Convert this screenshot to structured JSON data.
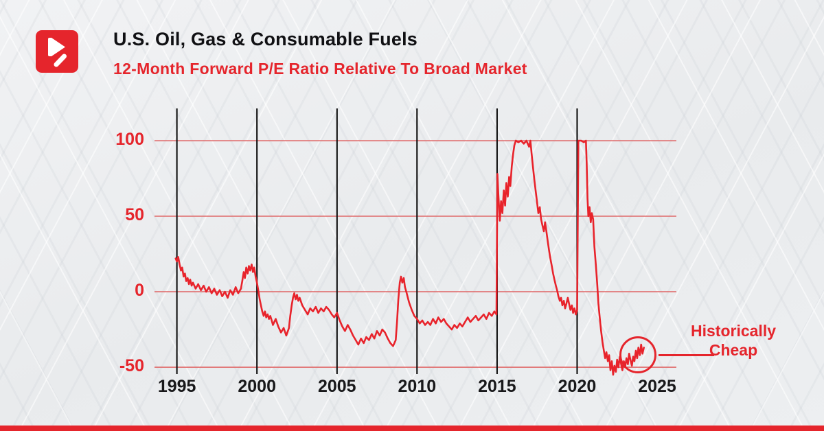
{
  "page": {
    "background_color": "#eceef0",
    "accent_color": "#e5252c",
    "text_color": "#141416"
  },
  "header": {
    "title": "U.S. Oil, Gas & Consumable Fuels",
    "subtitle": "12-Month Forward P/E Ratio Relative To Broad Market"
  },
  "annotation": {
    "line1": "Historically",
    "line2": "Cheap"
  },
  "chart_data": {
    "type": "line",
    "title": "U.S. Oil, Gas & Consumable Fuels",
    "subtitle": "12-Month Forward P/E Ratio Relative To Broad Market",
    "xlabel": "",
    "ylabel": "",
    "xlim": [
      1993.6,
      2026.2
    ],
    "ylim": [
      -54.5,
      122.7
    ],
    "x_ticks": [
      1995,
      2000,
      2005,
      2010,
      2015,
      2020,
      2025
    ],
    "x_tick_labels": [
      "1995",
      "2000",
      "2005",
      "2010",
      "2015",
      "2020",
      "2025"
    ],
    "y_ticks": [
      100,
      50,
      0,
      -50
    ],
    "y_tick_labels": [
      "100",
      "50",
      "0",
      "-50"
    ],
    "grid": {
      "vertical_years": [
        1995,
        2000,
        2005,
        2010,
        2015,
        2020
      ],
      "horizontal_values": [
        100,
        50,
        0,
        -50
      ]
    },
    "legend": "none",
    "colors": {
      "line": "#e8232b",
      "grid_horizontal": "#e06a6a",
      "grid_vertical": "#1a1a1a",
      "x_tick": "#18181a",
      "y_tick": "#e5252c"
    },
    "annotation": {
      "text": "Historically Cheap",
      "target_x": 2023.8,
      "target_y": -42,
      "radius_px": 27
    },
    "series": [
      {
        "points": [
          [
            1994.92,
            22
          ],
          [
            1995.0,
            20
          ],
          [
            1995.08,
            23
          ],
          [
            1995.17,
            18
          ],
          [
            1995.25,
            14
          ],
          [
            1995.33,
            16
          ],
          [
            1995.42,
            10
          ],
          [
            1995.5,
            12
          ],
          [
            1995.58,
            7
          ],
          [
            1995.67,
            9
          ],
          [
            1995.75,
            5
          ],
          [
            1995.83,
            8
          ],
          [
            1995.92,
            4
          ],
          [
            1996.0,
            6
          ],
          [
            1996.17,
            2
          ],
          [
            1996.33,
            5
          ],
          [
            1996.5,
            1
          ],
          [
            1996.67,
            4
          ],
          [
            1996.83,
            0
          ],
          [
            1997.0,
            3
          ],
          [
            1997.17,
            -1
          ],
          [
            1997.33,
            2
          ],
          [
            1997.5,
            -2
          ],
          [
            1997.67,
            1
          ],
          [
            1997.83,
            -3
          ],
          [
            1998.0,
            0
          ],
          [
            1998.17,
            -4
          ],
          [
            1998.33,
            1
          ],
          [
            1998.5,
            -2
          ],
          [
            1998.67,
            3
          ],
          [
            1998.83,
            -1
          ],
          [
            1999.0,
            2
          ],
          [
            1999.08,
            7
          ],
          [
            1999.17,
            13
          ],
          [
            1999.25,
            9
          ],
          [
            1999.33,
            16
          ],
          [
            1999.42,
            12
          ],
          [
            1999.5,
            17
          ],
          [
            1999.58,
            14
          ],
          [
            1999.67,
            18
          ],
          [
            1999.75,
            13
          ],
          [
            1999.83,
            16
          ],
          [
            1999.92,
            10
          ],
          [
            2000.0,
            6
          ],
          [
            2000.08,
            1
          ],
          [
            2000.17,
            -5
          ],
          [
            2000.25,
            -9
          ],
          [
            2000.33,
            -13
          ],
          [
            2000.42,
            -16
          ],
          [
            2000.5,
            -13
          ],
          [
            2000.58,
            -17
          ],
          [
            2000.67,
            -15
          ],
          [
            2000.75,
            -18
          ],
          [
            2000.83,
            -16
          ],
          [
            2000.92,
            -19
          ],
          [
            2001.0,
            -22
          ],
          [
            2001.17,
            -18
          ],
          [
            2001.33,
            -23
          ],
          [
            2001.5,
            -27
          ],
          [
            2001.67,
            -24
          ],
          [
            2001.83,
            -29
          ],
          [
            2002.0,
            -24
          ],
          [
            2002.08,
            -16
          ],
          [
            2002.17,
            -9
          ],
          [
            2002.25,
            -4
          ],
          [
            2002.33,
            -1
          ],
          [
            2002.42,
            -5
          ],
          [
            2002.5,
            -2
          ],
          [
            2002.58,
            -6
          ],
          [
            2002.67,
            -4
          ],
          [
            2002.83,
            -9
          ],
          [
            2003.0,
            -12
          ],
          [
            2003.17,
            -15
          ],
          [
            2003.33,
            -11
          ],
          [
            2003.5,
            -13
          ],
          [
            2003.67,
            -10
          ],
          [
            2003.83,
            -14
          ],
          [
            2004.0,
            -11
          ],
          [
            2004.17,
            -13
          ],
          [
            2004.33,
            -10
          ],
          [
            2004.5,
            -12
          ],
          [
            2004.67,
            -15
          ],
          [
            2004.83,
            -17
          ],
          [
            2005.0,
            -14
          ],
          [
            2005.17,
            -19
          ],
          [
            2005.33,
            -23
          ],
          [
            2005.5,
            -26
          ],
          [
            2005.67,
            -22
          ],
          [
            2005.83,
            -25
          ],
          [
            2006.0,
            -29
          ],
          [
            2006.17,
            -32
          ],
          [
            2006.33,
            -35
          ],
          [
            2006.5,
            -31
          ],
          [
            2006.67,
            -34
          ],
          [
            2006.83,
            -30
          ],
          [
            2007.0,
            -32
          ],
          [
            2007.17,
            -28
          ],
          [
            2007.33,
            -31
          ],
          [
            2007.5,
            -26
          ],
          [
            2007.67,
            -29
          ],
          [
            2007.83,
            -25
          ],
          [
            2008.0,
            -27
          ],
          [
            2008.17,
            -31
          ],
          [
            2008.33,
            -34
          ],
          [
            2008.5,
            -36
          ],
          [
            2008.67,
            -32
          ],
          [
            2008.75,
            -20
          ],
          [
            2008.83,
            -5
          ],
          [
            2008.92,
            6
          ],
          [
            2009.0,
            10
          ],
          [
            2009.08,
            6
          ],
          [
            2009.17,
            9
          ],
          [
            2009.25,
            3
          ],
          [
            2009.33,
            0
          ],
          [
            2009.5,
            -7
          ],
          [
            2009.67,
            -12
          ],
          [
            2009.83,
            -16
          ],
          [
            2010.0,
            -18
          ],
          [
            2010.17,
            -21
          ],
          [
            2010.33,
            -19
          ],
          [
            2010.5,
            -22
          ],
          [
            2010.67,
            -20
          ],
          [
            2010.83,
            -22
          ],
          [
            2011.0,
            -18
          ],
          [
            2011.17,
            -21
          ],
          [
            2011.33,
            -17
          ],
          [
            2011.5,
            -20
          ],
          [
            2011.67,
            -18
          ],
          [
            2011.83,
            -21
          ],
          [
            2012.0,
            -23
          ],
          [
            2012.17,
            -25
          ],
          [
            2012.33,
            -22
          ],
          [
            2012.5,
            -24
          ],
          [
            2012.67,
            -21
          ],
          [
            2012.83,
            -23
          ],
          [
            2013.0,
            -20
          ],
          [
            2013.17,
            -17
          ],
          [
            2013.33,
            -20
          ],
          [
            2013.5,
            -18
          ],
          [
            2013.67,
            -16
          ],
          [
            2013.83,
            -19
          ],
          [
            2014.0,
            -17
          ],
          [
            2014.17,
            -15
          ],
          [
            2014.33,
            -18
          ],
          [
            2014.5,
            -14
          ],
          [
            2014.67,
            -16
          ],
          [
            2014.83,
            -13
          ],
          [
            2014.96,
            -15
          ],
          [
            2015.02,
            78
          ],
          [
            2015.08,
            64
          ],
          [
            2015.17,
            47
          ],
          [
            2015.25,
            60
          ],
          [
            2015.33,
            52
          ],
          [
            2015.42,
            67
          ],
          [
            2015.5,
            57
          ],
          [
            2015.58,
            72
          ],
          [
            2015.67,
            63
          ],
          [
            2015.75,
            76
          ],
          [
            2015.83,
            70
          ],
          [
            2015.92,
            83
          ],
          [
            2016.0,
            91
          ],
          [
            2016.08,
            97
          ],
          [
            2016.17,
            100
          ],
          [
            2016.33,
            99
          ],
          [
            2016.5,
            100
          ],
          [
            2016.67,
            98
          ],
          [
            2016.83,
            100
          ],
          [
            2017.0,
            96
          ],
          [
            2017.08,
            100
          ],
          [
            2017.17,
            90
          ],
          [
            2017.25,
            82
          ],
          [
            2017.33,
            74
          ],
          [
            2017.42,
            66
          ],
          [
            2017.5,
            59
          ],
          [
            2017.58,
            52
          ],
          [
            2017.67,
            56
          ],
          [
            2017.75,
            48
          ],
          [
            2017.83,
            44
          ],
          [
            2017.92,
            40
          ],
          [
            2018.0,
            46
          ],
          [
            2018.08,
            40
          ],
          [
            2018.17,
            33
          ],
          [
            2018.25,
            27
          ],
          [
            2018.33,
            22
          ],
          [
            2018.42,
            17
          ],
          [
            2018.5,
            12
          ],
          [
            2018.58,
            8
          ],
          [
            2018.67,
            4
          ],
          [
            2018.75,
            1
          ],
          [
            2018.83,
            -3
          ],
          [
            2018.92,
            -6
          ],
          [
            2019.0,
            -4
          ],
          [
            2019.08,
            -9
          ],
          [
            2019.17,
            -6
          ],
          [
            2019.25,
            -11
          ],
          [
            2019.33,
            -8
          ],
          [
            2019.42,
            -4
          ],
          [
            2019.5,
            -8
          ],
          [
            2019.58,
            -12
          ],
          [
            2019.67,
            -9
          ],
          [
            2019.75,
            -14
          ],
          [
            2019.83,
            -11
          ],
          [
            2019.92,
            -15
          ],
          [
            2020.0,
            -12
          ],
          [
            2020.04,
            45
          ],
          [
            2020.08,
            100
          ],
          [
            2020.25,
            100
          ],
          [
            2020.42,
            99
          ],
          [
            2020.55,
            100
          ],
          [
            2020.6,
            85
          ],
          [
            2020.65,
            62
          ],
          [
            2020.7,
            50
          ],
          [
            2020.78,
            56
          ],
          [
            2020.85,
            46
          ],
          [
            2020.92,
            52
          ],
          [
            2021.0,
            48
          ],
          [
            2021.08,
            30
          ],
          [
            2021.17,
            18
          ],
          [
            2021.25,
            6
          ],
          [
            2021.33,
            -8
          ],
          [
            2021.42,
            -18
          ],
          [
            2021.5,
            -26
          ],
          [
            2021.58,
            -33
          ],
          [
            2021.67,
            -39
          ],
          [
            2021.75,
            -44
          ],
          [
            2021.83,
            -40
          ],
          [
            2021.92,
            -46
          ],
          [
            2022.0,
            -42
          ],
          [
            2022.08,
            -52
          ],
          [
            2022.17,
            -46
          ],
          [
            2022.25,
            -55
          ],
          [
            2022.33,
            -49
          ],
          [
            2022.42,
            -53
          ],
          [
            2022.5,
            -45
          ],
          [
            2022.58,
            -50
          ],
          [
            2022.67,
            -43
          ],
          [
            2022.75,
            -48
          ],
          [
            2022.83,
            -52
          ],
          [
            2022.92,
            -46
          ],
          [
            2023.0,
            -50
          ],
          [
            2023.08,
            -44
          ],
          [
            2023.17,
            -48
          ],
          [
            2023.25,
            -41
          ],
          [
            2023.33,
            -45
          ],
          [
            2023.42,
            -49
          ],
          [
            2023.5,
            -43
          ],
          [
            2023.58,
            -46
          ],
          [
            2023.67,
            -39
          ],
          [
            2023.75,
            -44
          ],
          [
            2023.83,
            -37
          ],
          [
            2023.92,
            -42
          ],
          [
            2024.0,
            -35
          ],
          [
            2024.08,
            -41
          ],
          [
            2024.17,
            -37
          ]
        ]
      }
    ]
  }
}
